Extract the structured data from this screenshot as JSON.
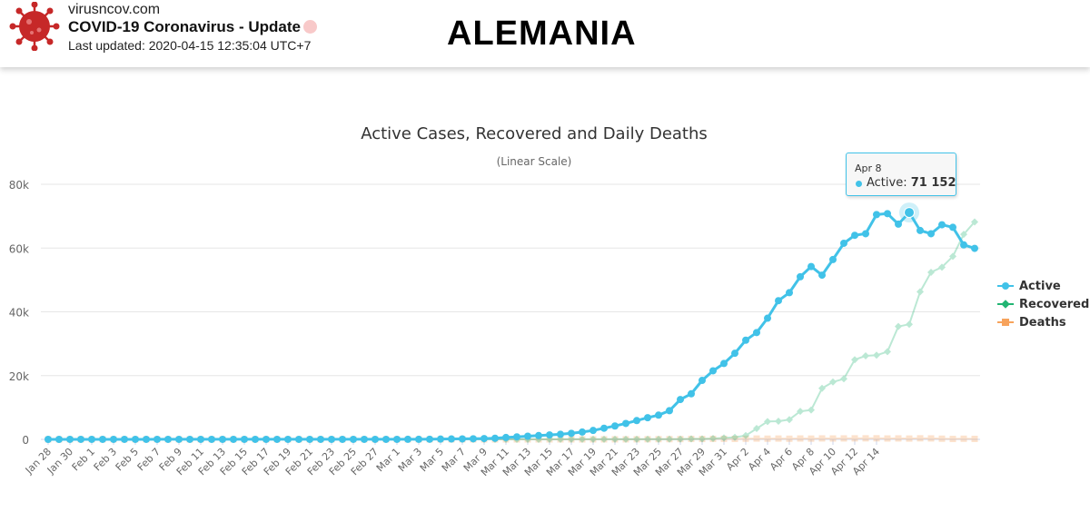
{
  "header": {
    "site": "virusncov.com",
    "title": "COVID-19 Coronavirus - Update",
    "last_updated": "Last updated: 2020-04-15 12:35:04 UTC+7",
    "country": "ALEMANIA"
  },
  "tooltip": {
    "date": "Apr 8",
    "series": "Active",
    "value": "71 152"
  },
  "colors": {
    "active": "#41c2e8",
    "recovered": "#22b573",
    "deaths": "#f7a35c"
  },
  "chart_data": {
    "type": "line",
    "title": "Active Cases, Recovered and Daily Deaths",
    "subtitle": "(Linear Scale)",
    "xlabel": "",
    "ylabel": "",
    "ylim": [
      0,
      80000
    ],
    "y_ticks": [
      "0",
      "20k",
      "40k",
      "60k",
      "80k"
    ],
    "grid": true,
    "legend_position": "right",
    "x_tick_labels": [
      "Jan 28",
      "Jan 30",
      "Feb 1",
      "Feb 3",
      "Feb 5",
      "Feb 7",
      "Feb 9",
      "Feb 11",
      "Feb 13",
      "Feb 15",
      "Feb 17",
      "Feb 19",
      "Feb 21",
      "Feb 23",
      "Feb 25",
      "Feb 27",
      "Mar 1",
      "Mar 3",
      "Mar 5",
      "Mar 7",
      "Mar 9",
      "Mar 11",
      "Mar 13",
      "Mar 15",
      "Mar 17",
      "Mar 19",
      "Mar 21",
      "Mar 23",
      "Mar 25",
      "Mar 27",
      "Mar 29",
      "Mar 31",
      "Apr 2",
      "Apr 4",
      "Apr 6",
      "Apr 8",
      "Apr 10",
      "Apr 12",
      "Apr 14"
    ],
    "series": [
      {
        "name": "Active",
        "values": [
          4,
          4,
          5,
          7,
          8,
          10,
          12,
          12,
          14,
          14,
          16,
          16,
          16,
          16,
          16,
          16,
          16,
          16,
          16,
          16,
          16,
          16,
          16,
          16,
          16,
          16,
          16,
          16,
          16,
          16,
          16,
          16,
          16,
          20,
          22,
          50,
          100,
          130,
          160,
          190,
          260,
          360,
          600,
          800,
          1000,
          1200,
          1400,
          1600,
          1900,
          2300,
          2800,
          3500,
          4200,
          5000,
          5900,
          6800,
          7600,
          9000,
          12500,
          14300,
          18500,
          21500,
          23800,
          27000,
          31100,
          33500,
          38000,
          43500,
          46000,
          51000,
          54200,
          51500,
          56400,
          61500,
          64000,
          64500,
          70500,
          70800,
          67500,
          71152,
          65500,
          64500,
          67300,
          66500,
          61000,
          59900
        ]
      },
      {
        "name": "Recovered",
        "values": [
          0,
          0,
          0,
          0,
          0,
          0,
          0,
          0,
          0,
          0,
          0,
          0,
          0,
          0,
          0,
          0,
          0,
          0,
          0,
          0,
          0,
          0,
          0,
          0,
          0,
          0,
          0,
          0,
          0,
          0,
          14,
          14,
          14,
          14,
          14,
          14,
          14,
          14,
          14,
          14,
          14,
          16,
          16,
          16,
          16,
          16,
          25,
          25,
          46,
          46,
          46,
          46,
          46,
          46,
          46,
          53,
          53,
          64,
          64,
          135,
          135,
          270,
          450,
          650,
          1200,
          3400,
          5600,
          5700,
          6200,
          8800,
          9200,
          16000,
          18000,
          19000,
          25000,
          26200,
          26400,
          27500,
          35400,
          36100,
          46300,
          52400,
          54000,
          57400,
          64300,
          68200
        ]
      },
      {
        "name": "Deaths",
        "values": [
          0,
          0,
          0,
          0,
          0,
          0,
          0,
          0,
          0,
          0,
          0,
          0,
          0,
          0,
          0,
          0,
          0,
          0,
          0,
          0,
          0,
          0,
          0,
          0,
          0,
          0,
          0,
          0,
          0,
          0,
          0,
          0,
          0,
          0,
          0,
          0,
          0,
          0,
          0,
          0,
          0,
          0,
          0,
          0,
          2,
          1,
          4,
          3,
          4,
          2,
          10,
          15,
          20,
          22,
          30,
          50,
          70,
          80,
          100,
          150,
          130,
          160,
          180,
          150,
          200,
          260,
          220,
          250,
          200,
          280,
          240,
          300,
          280,
          300,
          320,
          330,
          340,
          280,
          300,
          250,
          330,
          300,
          210,
          130,
          200,
          150
        ]
      }
    ]
  }
}
